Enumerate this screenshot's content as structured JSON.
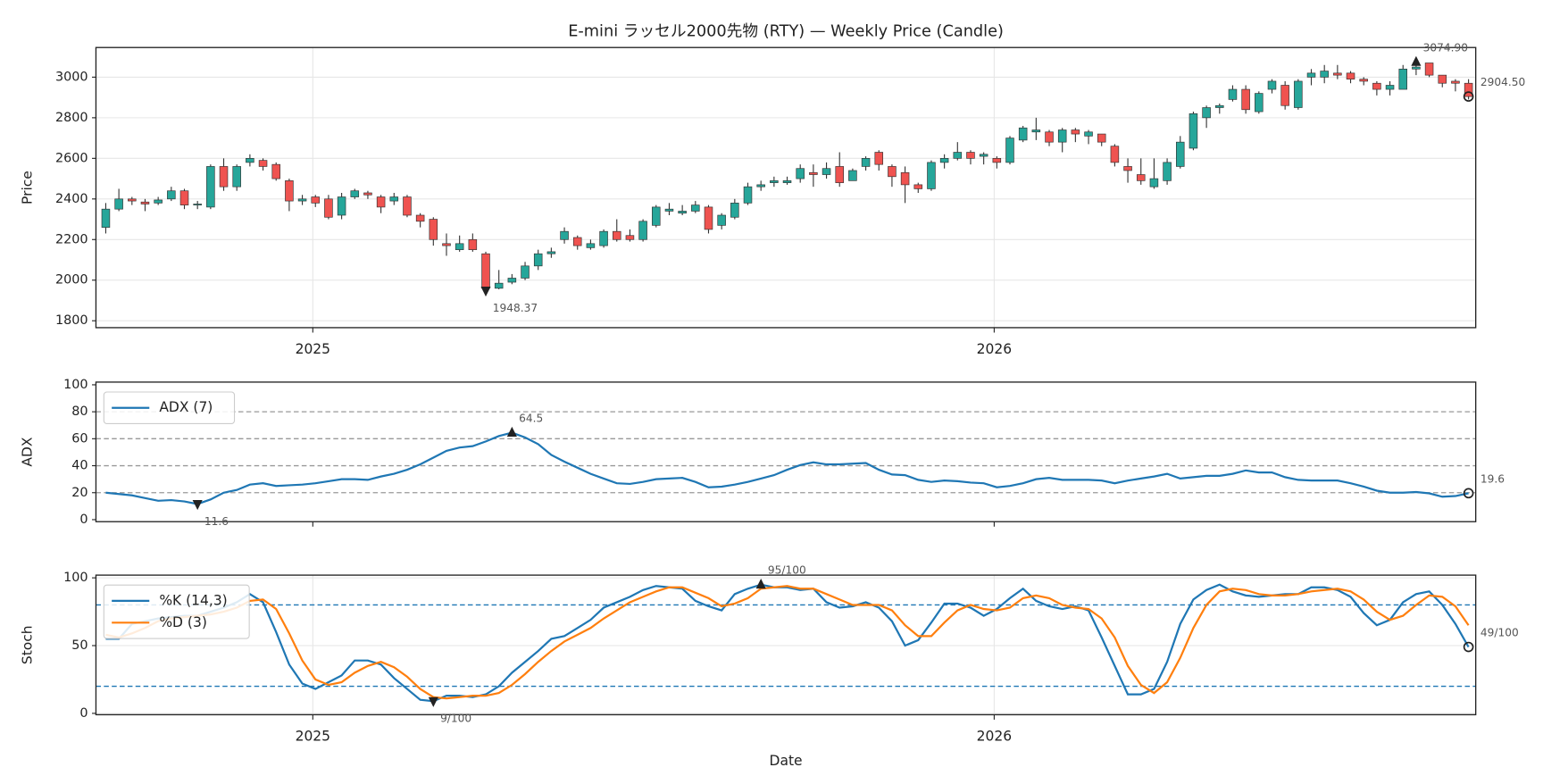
{
  "chart_data": [
    {
      "type": "candlestick",
      "title": "E-mini ラッセル2000先物 (RTY) — Weekly Price (Candle)",
      "ylabel": "Price",
      "open": [
        2260,
        2350,
        2400,
        2385,
        2380,
        2400,
        2440,
        2370,
        2360,
        2560,
        2460,
        2580,
        2590,
        2570,
        2490,
        2390,
        2410,
        2400,
        2320,
        2410,
        2430,
        2410,
        2390,
        2410,
        2320,
        2300,
        2180,
        2150,
        2200,
        2130,
        1960,
        1990,
        2010,
        2070,
        2130,
        2200,
        2210,
        2160,
        2170,
        2240,
        2220,
        2200,
        2270,
        2340,
        2330,
        2340,
        2360,
        2270,
        2310,
        2380,
        2460,
        2480,
        2480,
        2500,
        2530,
        2520,
        2560,
        2490,
        2560,
        2630,
        2560,
        2530,
        2470,
        2450,
        2580,
        2600,
        2630,
        2610,
        2600,
        2580,
        2690,
        2730,
        2730,
        2680,
        2740,
        2710,
        2720,
        2660,
        2560,
        2520,
        2460,
        2490,
        2560,
        2650,
        2800,
        2850,
        2890,
        2940,
        2830,
        2940,
        2960,
        2850,
        3000,
        3000,
        3020,
        3020,
        2990,
        2970,
        2940,
        2940,
        3040,
        3070,
        3010,
        2980,
        2970
      ],
      "high": [
        2380,
        2450,
        2410,
        2400,
        2410,
        2460,
        2450,
        2390,
        2570,
        2600,
        2570,
        2620,
        2600,
        2580,
        2500,
        2420,
        2420,
        2420,
        2430,
        2450,
        2440,
        2420,
        2430,
        2420,
        2330,
        2310,
        2230,
        2220,
        2230,
        2140,
        2050,
        2030,
        2090,
        2150,
        2160,
        2260,
        2220,
        2200,
        2250,
        2300,
        2250,
        2300,
        2370,
        2380,
        2370,
        2390,
        2370,
        2330,
        2400,
        2480,
        2490,
        2510,
        2510,
        2570,
        2570,
        2580,
        2630,
        2550,
        2610,
        2640,
        2570,
        2560,
        2480,
        2590,
        2620,
        2680,
        2640,
        2630,
        2610,
        2710,
        2760,
        2800,
        2740,
        2750,
        2750,
        2740,
        2720,
        2670,
        2600,
        2600,
        2600,
        2600,
        2710,
        2830,
        2860,
        2870,
        2960,
        2960,
        2930,
        2990,
        2980,
        2990,
        3040,
        3060,
        3060,
        3030,
        3000,
        2980,
        2980,
        3060,
        3074.9,
        3060,
        3010,
        2990,
        2990
      ],
      "low": [
        2230,
        2340,
        2370,
        2340,
        2370,
        2390,
        2350,
        2350,
        2350,
        2440,
        2440,
        2560,
        2540,
        2490,
        2340,
        2370,
        2360,
        2300,
        2300,
        2400,
        2400,
        2330,
        2370,
        2310,
        2260,
        2170,
        2120,
        2140,
        2140,
        1948.37,
        1955,
        1980,
        2000,
        2050,
        2110,
        2180,
        2150,
        2150,
        2160,
        2190,
        2190,
        2190,
        2260,
        2320,
        2320,
        2330,
        2230,
        2250,
        2300,
        2370,
        2440,
        2460,
        2470,
        2480,
        2460,
        2500,
        2460,
        2490,
        2540,
        2540,
        2460,
        2380,
        2430,
        2440,
        2550,
        2590,
        2570,
        2570,
        2550,
        2570,
        2680,
        2690,
        2660,
        2630,
        2680,
        2670,
        2660,
        2560,
        2480,
        2470,
        2450,
        2470,
        2550,
        2640,
        2750,
        2820,
        2880,
        2820,
        2820,
        2920,
        2840,
        2840,
        2960,
        2970,
        2990,
        2970,
        2960,
        2910,
        2910,
        2940,
        3010,
        3000,
        2950,
        2930,
        2890
      ],
      "close": [
        2350,
        2400,
        2390,
        2375,
        2395,
        2440,
        2370,
        2375,
        2560,
        2460,
        2560,
        2600,
        2560,
        2500,
        2390,
        2400,
        2380,
        2310,
        2410,
        2440,
        2420,
        2360,
        2410,
        2320,
        2290,
        2200,
        2170,
        2180,
        2150,
        1960,
        1985,
        2010,
        2070,
        2130,
        2140,
        2240,
        2170,
        2180,
        2240,
        2200,
        2200,
        2290,
        2360,
        2350,
        2340,
        2370,
        2250,
        2320,
        2380,
        2460,
        2470,
        2490,
        2490,
        2550,
        2520,
        2550,
        2480,
        2540,
        2600,
        2570,
        2510,
        2470,
        2450,
        2580,
        2600,
        2630,
        2600,
        2620,
        2580,
        2700,
        2750,
        2740,
        2680,
        2740,
        2720,
        2730,
        2680,
        2580,
        2540,
        2490,
        2500,
        2580,
        2680,
        2820,
        2850,
        2860,
        2940,
        2840,
        2920,
        2980,
        2860,
        2980,
        3020,
        3030,
        3010,
        2990,
        2980,
        2940,
        2960,
        3040,
        3050,
        3010,
        2970,
        2970,
        2904.5
      ],
      "up_color": "#26a69a",
      "down_color": "#ef5350",
      "xlim": [
        -0.75,
        104.55
      ],
      "xticks": [
        {
          "value": 15.8,
          "label": "2025"
        },
        {
          "value": 67.8,
          "label": "2026"
        }
      ],
      "ylim": [
        1766,
        3146
      ],
      "yticks": [
        1800,
        2000,
        2200,
        2400,
        2600,
        2800,
        3000
      ],
      "grid": true,
      "annotations": {
        "max": {
          "value": 3074.9,
          "label": "3074.90"
        },
        "min": {
          "value": 1948.37,
          "label": "1948.37"
        },
        "last": {
          "value": 2904.5,
          "label": "2904.50"
        }
      }
    },
    {
      "type": "line",
      "ylabel": "ADX",
      "legend": "upper left",
      "series": [
        {
          "name": "ADX (7)",
          "color": "#1f77b4",
          "values": [
            20,
            19,
            18,
            16,
            14,
            14.5,
            13.5,
            11.6,
            15,
            20,
            22,
            26,
            27,
            25,
            25.5,
            26,
            27,
            28.5,
            30,
            30,
            29.5,
            32,
            34,
            37,
            41,
            46,
            51,
            53.5,
            54.5,
            58,
            62,
            64.5,
            61,
            56,
            48,
            43,
            38.5,
            34,
            30.5,
            27,
            26.5,
            28,
            30,
            30.5,
            31,
            28,
            24,
            24.5,
            26,
            28,
            30.5,
            33,
            37,
            40.5,
            42.5,
            41,
            41,
            41.5,
            42,
            37,
            33.5,
            33,
            29.5,
            28,
            29,
            28.5,
            27.5,
            27,
            24,
            25,
            27,
            30,
            31,
            29.5,
            29.5,
            29.5,
            29,
            27,
            29,
            30.5,
            32,
            34,
            30.5,
            31.5,
            32.5,
            32.5,
            34,
            36.5,
            35,
            35,
            31.5,
            29.5,
            29,
            29,
            29,
            27,
            24.5,
            21.5,
            20,
            20,
            20.5,
            19.5,
            17,
            17.5,
            19.6
          ]
        }
      ],
      "levels": [
        20,
        40,
        60,
        80
      ],
      "level_color": "#999999",
      "xlim": [
        -0.75,
        104.55
      ],
      "xticks": [
        15.8,
        67.8
      ],
      "ylim": [
        -1.5,
        102
      ],
      "yticks": [
        0,
        20,
        40,
        60,
        80,
        100
      ],
      "grid": false,
      "annotations": {
        "max": {
          "value": 64.5,
          "label": "64.5"
        },
        "min": {
          "value": 11.6,
          "label": "11.6"
        },
        "last": {
          "value": 19.6,
          "label": "19.6"
        }
      }
    },
    {
      "type": "line",
      "ylabel": "Stoch",
      "xlabel": "Date",
      "legend": "upper left",
      "series": [
        {
          "name": "%K (14,3)",
          "color": "#1f77b4",
          "values": [
            55,
            55,
            66,
            68,
            70,
            71,
            72,
            72,
            75,
            78,
            82,
            88,
            82,
            60,
            36,
            22,
            18,
            23,
            28,
            39,
            39,
            36,
            26,
            18,
            10,
            9,
            13,
            13,
            12,
            14,
            20,
            30,
            38,
            46,
            55,
            57,
            63,
            69,
            78,
            82,
            86,
            91,
            94,
            93,
            92,
            83,
            79,
            76,
            88,
            92,
            95,
            93,
            93,
            91,
            92,
            82,
            78,
            79,
            82,
            78,
            68,
            50,
            54,
            67,
            81,
            81,
            78,
            72,
            77,
            85,
            92,
            83,
            79,
            77,
            79,
            76,
            56,
            35,
            14,
            14,
            18,
            38,
            66,
            84,
            91,
            95,
            90,
            87,
            86,
            87,
            88,
            88,
            93,
            93,
            91,
            86,
            74,
            65,
            69,
            82,
            88,
            90,
            80,
            66,
            49
          ]
        },
        {
          "name": "%D (3)",
          "color": "#ff7f0e",
          "values": [
            58,
            56,
            59,
            63,
            68,
            70,
            71,
            72,
            73,
            75,
            78,
            83,
            84,
            77,
            59,
            39,
            25,
            21,
            23,
            30,
            35,
            38,
            34,
            27,
            18,
            12,
            11,
            12,
            13,
            13,
            15,
            21,
            29,
            38,
            46,
            53,
            58,
            63,
            70,
            76,
            82,
            86,
            90,
            93,
            93,
            89,
            85,
            79,
            81,
            85,
            92,
            93,
            94,
            92,
            92,
            88,
            84,
            80,
            80,
            80,
            76,
            65,
            57,
            57,
            67,
            76,
            80,
            77,
            76,
            78,
            85,
            87,
            85,
            80,
            78,
            77,
            70,
            56,
            35,
            21,
            15,
            23,
            41,
            63,
            80,
            90,
            92,
            91,
            88,
            87,
            87,
            88,
            90,
            91,
            92,
            90,
            84,
            75,
            69,
            72,
            80,
            87,
            86,
            79,
            65
          ]
        }
      ],
      "levels": [
        20,
        80
      ],
      "level_color": "#1f77b4",
      "xlim": [
        -0.75,
        104.55
      ],
      "xticks": [
        {
          "value": 15.8,
          "label": "2025"
        },
        {
          "value": 67.8,
          "label": "2026"
        }
      ],
      "ylim": [
        -1,
        102
      ],
      "yticks": [
        0,
        50,
        100
      ],
      "grid": true,
      "annotations": {
        "max": {
          "value": 95,
          "label": "95/100"
        },
        "min": {
          "value": 9,
          "label": "9/100"
        },
        "last": {
          "value": 49,
          "label": "49/100"
        }
      }
    }
  ]
}
